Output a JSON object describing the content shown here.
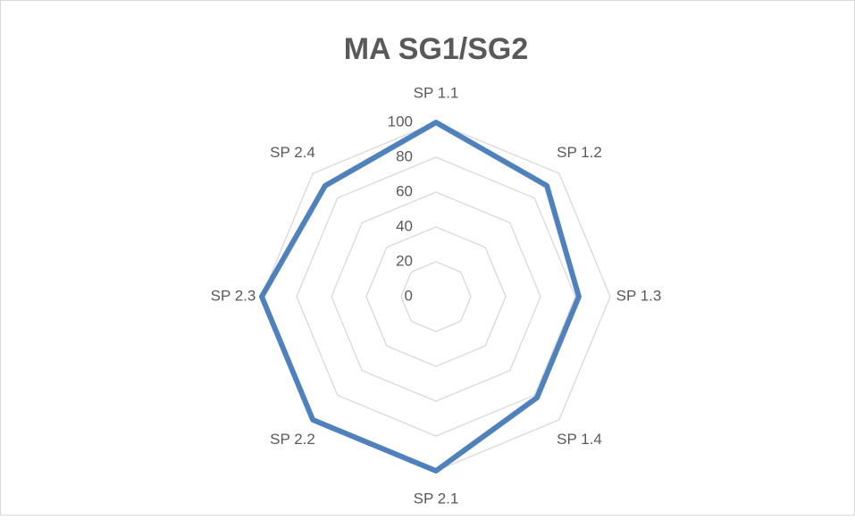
{
  "chart_data": {
    "type": "radar",
    "title": "MA SG1/SG2",
    "categories": [
      "SP 1.1",
      "SP 1.2",
      "SP 1.3",
      "SP 1.4",
      "SP 2.1",
      "SP 2.2",
      "SP 2.3",
      "SP 2.4"
    ],
    "series": [
      {
        "name": "MA SG1/SG2",
        "color": "#4f81bd",
        "values": [
          100,
          90,
          82,
          82,
          100,
          100,
          100,
          90
        ]
      }
    ],
    "ylim": [
      0,
      100
    ],
    "yticks": [
      0,
      20,
      40,
      60,
      80,
      100
    ],
    "grid": true
  }
}
